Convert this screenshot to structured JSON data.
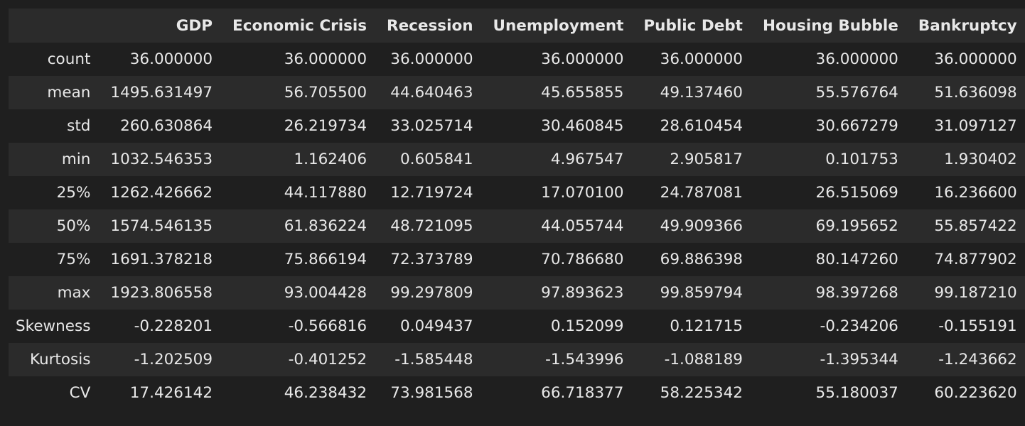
{
  "table": {
    "columns": [
      "",
      "GDP",
      "Economic Crisis",
      "Recession",
      "Unemployment",
      "Public Debt",
      "Housing Bubble",
      "Bankruptcy"
    ],
    "rows": [
      {
        "label": "count",
        "values": [
          "36.000000",
          "36.000000",
          "36.000000",
          "36.000000",
          "36.000000",
          "36.000000",
          "36.000000"
        ]
      },
      {
        "label": "mean",
        "values": [
          "1495.631497",
          "56.705500",
          "44.640463",
          "45.655855",
          "49.137460",
          "55.576764",
          "51.636098"
        ]
      },
      {
        "label": "std",
        "values": [
          "260.630864",
          "26.219734",
          "33.025714",
          "30.460845",
          "28.610454",
          "30.667279",
          "31.097127"
        ]
      },
      {
        "label": "min",
        "values": [
          "1032.546353",
          "1.162406",
          "0.605841",
          "4.967547",
          "2.905817",
          "0.101753",
          "1.930402"
        ]
      },
      {
        "label": "25%",
        "values": [
          "1262.426662",
          "44.117880",
          "12.719724",
          "17.070100",
          "24.787081",
          "26.515069",
          "16.236600"
        ]
      },
      {
        "label": "50%",
        "values": [
          "1574.546135",
          "61.836224",
          "48.721095",
          "44.055744",
          "49.909366",
          "69.195652",
          "55.857422"
        ]
      },
      {
        "label": "75%",
        "values": [
          "1691.378218",
          "75.866194",
          "72.373789",
          "70.786680",
          "69.886398",
          "80.147260",
          "74.877902"
        ]
      },
      {
        "label": "max",
        "values": [
          "1923.806558",
          "93.004428",
          "99.297809",
          "97.893623",
          "99.859794",
          "98.397268",
          "99.187210"
        ]
      },
      {
        "label": "Skewness",
        "values": [
          "-0.228201",
          "-0.566816",
          "0.049437",
          "0.152099",
          "0.121715",
          "-0.234206",
          "-0.155191"
        ]
      },
      {
        "label": "Kurtosis",
        "values": [
          "-1.202509",
          "-0.401252",
          "-1.585448",
          "-1.543996",
          "-1.088189",
          "-1.395344",
          "-1.243662"
        ]
      },
      {
        "label": "CV",
        "values": [
          "17.426142",
          "46.238432",
          "73.981568",
          "66.718377",
          "58.225342",
          "55.180037",
          "60.223620"
        ]
      }
    ]
  }
}
